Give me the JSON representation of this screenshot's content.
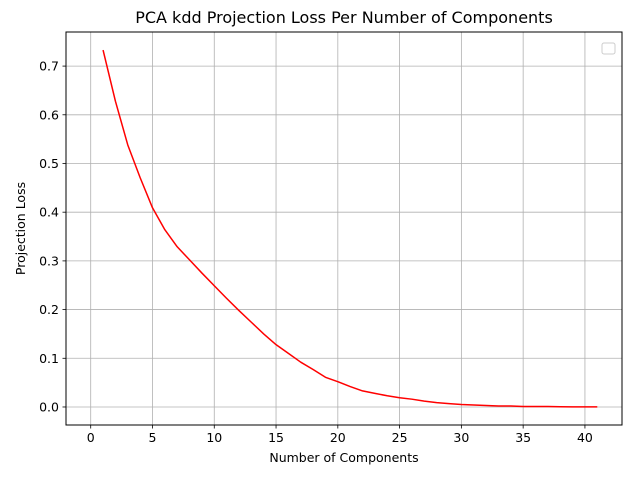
{
  "chart_data": {
    "type": "line",
    "title": "PCA kdd Projection Loss Per Number of Components",
    "xlabel": "Number of Components",
    "ylabel": "Projection Loss",
    "xlim": [
      -2,
      43
    ],
    "ylim": [
      -0.037,
      0.77
    ],
    "xticks": [
      0,
      5,
      10,
      15,
      20,
      25,
      30,
      35,
      40
    ],
    "yticks": [
      0.0,
      0.1,
      0.2,
      0.3,
      0.4,
      0.5,
      0.6,
      0.7
    ],
    "grid": true,
    "legend": "top-right",
    "series": [
      {
        "color": "#ff0000",
        "x": [
          1,
          2,
          3,
          4,
          5,
          6,
          7,
          8,
          9,
          10,
          11,
          12,
          13,
          14,
          15,
          16,
          17,
          18,
          19,
          20,
          21,
          22,
          23,
          24,
          25,
          26,
          27,
          28,
          29,
          30,
          31,
          32,
          33,
          34,
          35,
          36,
          37,
          38,
          39,
          40,
          41
        ],
        "values": [
          0.733,
          0.628,
          0.538,
          0.471,
          0.409,
          0.364,
          0.329,
          0.302,
          0.275,
          0.249,
          0.223,
          0.198,
          0.174,
          0.15,
          0.128,
          0.11,
          0.092,
          0.077,
          0.061,
          0.052,
          0.042,
          0.033,
          0.028,
          0.023,
          0.019,
          0.016,
          0.012,
          0.009,
          0.007,
          0.005,
          0.004,
          0.003,
          0.002,
          0.002,
          0.001,
          0.001,
          0.001,
          0.0005,
          0.0003,
          0.0002,
          0.0001
        ]
      }
    ]
  }
}
